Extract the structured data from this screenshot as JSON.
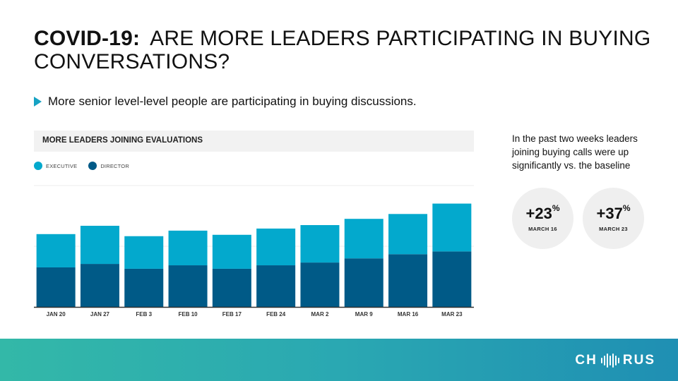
{
  "header": {
    "title_lead": "COVID-19:",
    "title_rest": "ARE MORE LEADERS PARTICIPATING IN BUYING CONVERSATIONS?",
    "bullet": "More senior level-level people are participating in buying discussions."
  },
  "chart_data": {
    "type": "bar",
    "stacked": true,
    "title": "MORE LEADERS JOINING EVALUATIONS",
    "categories": [
      "JAN 20",
      "JAN 27",
      "FEB 3",
      "FEB 10",
      "FEB 17",
      "FEB 24",
      "MAR 2",
      "MAR 9",
      "MAR 16",
      "MAR 23"
    ],
    "series": [
      {
        "name": "DIRECTOR",
        "color": "#005a87",
        "values": [
          57,
          62,
          55,
          60,
          55,
          60,
          64,
          70,
          76,
          80
        ]
      },
      {
        "name": "EXECUTIVE",
        "color": "#03a9cd",
        "values": [
          48,
          55,
          47,
          50,
          49,
          53,
          54,
          57,
          58,
          69
        ]
      }
    ],
    "ylim": [
      0,
      175
    ],
    "legend_position": "top-left",
    "grid": true
  },
  "sidebar": {
    "note": "In the past two weeks leaders joining buying calls were up significantly vs. the baseline",
    "stats": [
      {
        "value": "+23",
        "suffix": "%",
        "label": "MARCH 16"
      },
      {
        "value": "+37",
        "suffix": "%",
        "label": "MARCH 23"
      }
    ]
  },
  "footer": {
    "logo_left": "CH",
    "logo_right": "RUS"
  }
}
